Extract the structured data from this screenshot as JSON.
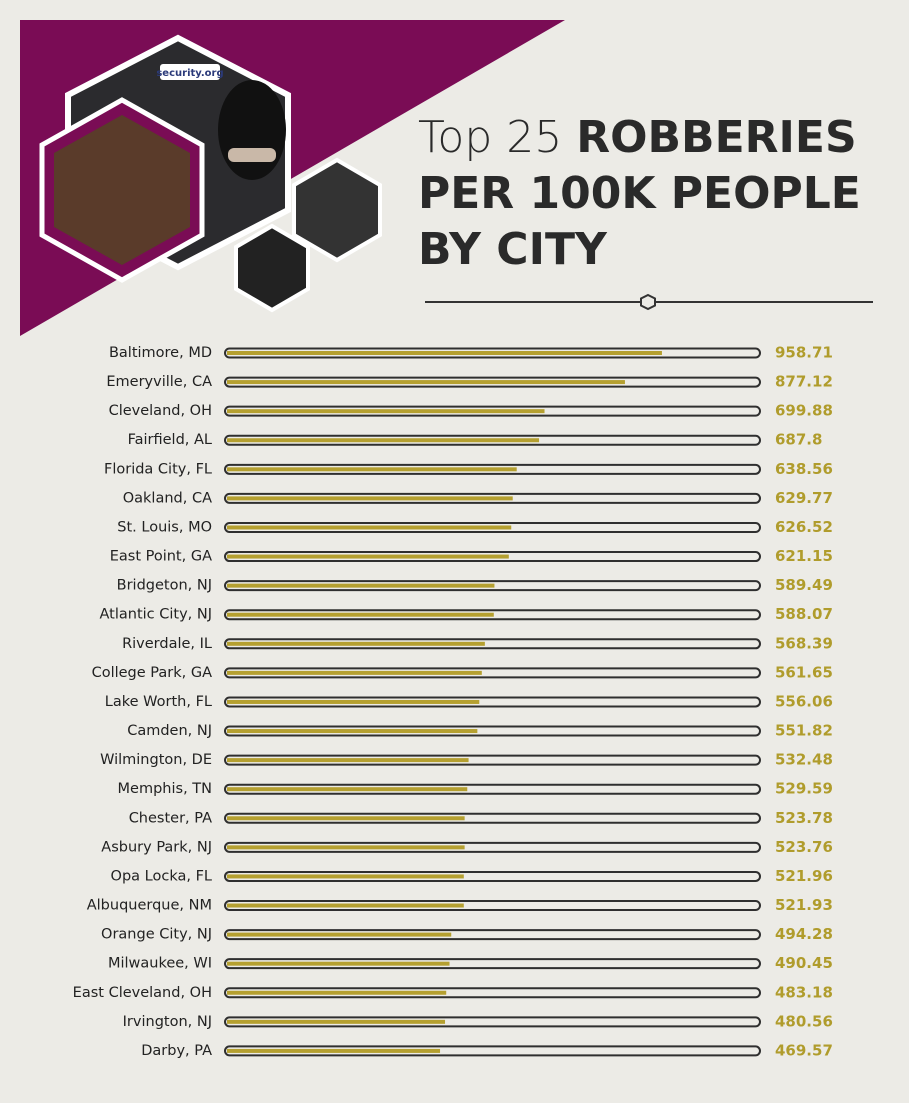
{
  "logo": "security.org",
  "chart_data": {
    "type": "bar",
    "title": {
      "light": "Top 25",
      "bold_lines": [
        "ROBBERIES",
        "PER 100K PEOPLE",
        "BY CITY"
      ]
    },
    "categories": [
      "Baltimore, MD",
      "Emeryville, CA",
      "Cleveland, OH",
      "Fairfield, AL",
      "Florida City, FL",
      "Oakland, CA",
      "St. Louis, MO",
      "East Point, GA",
      "Bridgeton, NJ",
      "Atlantic City, NJ",
      "Riverdale, IL",
      "College Park, GA",
      "Lake Worth, FL",
      "Camden, NJ",
      "Wilmington, DE",
      "Memphis, TN",
      "Chester, PA",
      "Asbury Park, NJ",
      "Opa Locka, FL",
      "Albuquerque, NM",
      "Orange City, NJ",
      "Milwaukee, WI",
      "East Cleveland, OH",
      "Irvington, NJ",
      "Darby, PA"
    ],
    "values": [
      958.71,
      877.12,
      699.88,
      687.8,
      638.56,
      629.77,
      626.52,
      621.15,
      589.49,
      588.07,
      568.39,
      561.65,
      556.06,
      551.82,
      532.48,
      529.59,
      523.78,
      523.76,
      521.96,
      521.93,
      494.28,
      490.45,
      483.18,
      480.56,
      469.57
    ],
    "color": "#b5a030"
  }
}
